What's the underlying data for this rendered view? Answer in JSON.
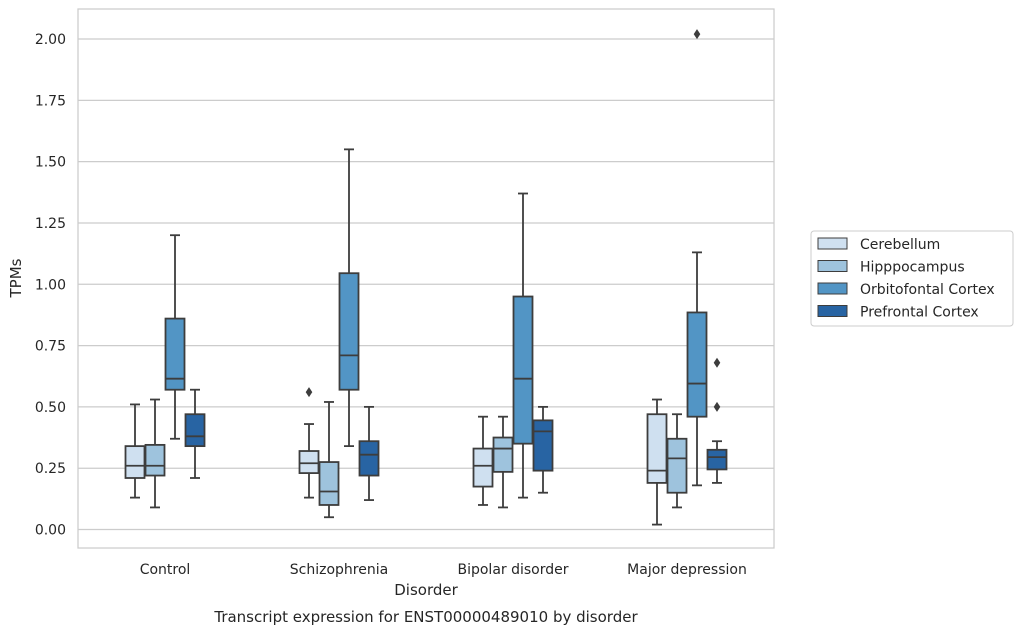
{
  "chart_data": {
    "type": "box",
    "caption": "Transcript expression for ENST00000489010 by disorder",
    "xlabel": "Disorder",
    "ylabel": "TPMs",
    "ylim": [
      -0.075,
      2.12
    ],
    "yticks": [
      0.0,
      0.25,
      0.5,
      0.75,
      1.0,
      1.25,
      1.5,
      1.75,
      2.0
    ],
    "ytick_labels": [
      "0.00",
      "0.25",
      "0.50",
      "0.75",
      "1.00",
      "1.25",
      "1.50",
      "1.75",
      "2.00"
    ],
    "grid": "horizontal",
    "legend_placement": "right",
    "categories": [
      "Control",
      "Schizophrenia",
      "Bipolar disorder",
      "Major depression"
    ],
    "series": [
      {
        "name": "Cerebellum",
        "color": "#cfe0f0",
        "boxes": [
          {
            "whisker_low": 0.13,
            "q1": 0.21,
            "median": 0.26,
            "q3": 0.34,
            "whisker_high": 0.51,
            "outliers": []
          },
          {
            "whisker_low": 0.13,
            "q1": 0.23,
            "median": 0.27,
            "q3": 0.32,
            "whisker_high": 0.43,
            "outliers": [
              0.56
            ]
          },
          {
            "whisker_low": 0.1,
            "q1": 0.175,
            "median": 0.26,
            "q3": 0.33,
            "whisker_high": 0.46,
            "outliers": []
          },
          {
            "whisker_low": 0.02,
            "q1": 0.19,
            "median": 0.24,
            "q3": 0.47,
            "whisker_high": 0.53,
            "outliers": []
          }
        ]
      },
      {
        "name": "Hipppocampus",
        "color": "#9ec3dd",
        "boxes": [
          {
            "whisker_low": 0.09,
            "q1": 0.22,
            "median": 0.26,
            "q3": 0.345,
            "whisker_high": 0.53,
            "outliers": []
          },
          {
            "whisker_low": 0.05,
            "q1": 0.1,
            "median": 0.155,
            "q3": 0.275,
            "whisker_high": 0.52,
            "outliers": []
          },
          {
            "whisker_low": 0.09,
            "q1": 0.235,
            "median": 0.33,
            "q3": 0.375,
            "whisker_high": 0.46,
            "outliers": []
          },
          {
            "whisker_low": 0.09,
            "q1": 0.15,
            "median": 0.29,
            "q3": 0.37,
            "whisker_high": 0.47,
            "outliers": []
          }
        ]
      },
      {
        "name": "Orbitofontal Cortex",
        "color": "#5295c5",
        "boxes": [
          {
            "whisker_low": 0.37,
            "q1": 0.57,
            "median": 0.615,
            "q3": 0.86,
            "whisker_high": 1.2,
            "outliers": []
          },
          {
            "whisker_low": 0.34,
            "q1": 0.57,
            "median": 0.71,
            "q3": 1.045,
            "whisker_high": 1.55,
            "outliers": []
          },
          {
            "whisker_low": 0.13,
            "q1": 0.35,
            "median": 0.615,
            "q3": 0.95,
            "whisker_high": 1.37,
            "outliers": []
          },
          {
            "whisker_low": 0.18,
            "q1": 0.46,
            "median": 0.595,
            "q3": 0.885,
            "whisker_high": 1.13,
            "outliers": [
              2.02
            ]
          }
        ]
      },
      {
        "name": "Prefrontal Cortex",
        "color": "#2864a3",
        "boxes": [
          {
            "whisker_low": 0.21,
            "q1": 0.34,
            "median": 0.38,
            "q3": 0.47,
            "whisker_high": 0.57,
            "outliers": []
          },
          {
            "whisker_low": 0.12,
            "q1": 0.22,
            "median": 0.305,
            "q3": 0.36,
            "whisker_high": 0.5,
            "outliers": []
          },
          {
            "whisker_low": 0.15,
            "q1": 0.24,
            "median": 0.4,
            "q3": 0.445,
            "whisker_high": 0.5,
            "outliers": []
          },
          {
            "whisker_low": 0.19,
            "q1": 0.245,
            "median": 0.295,
            "q3": 0.325,
            "whisker_high": 0.36,
            "outliers": [
              0.5,
              0.68
            ]
          }
        ]
      }
    ]
  }
}
